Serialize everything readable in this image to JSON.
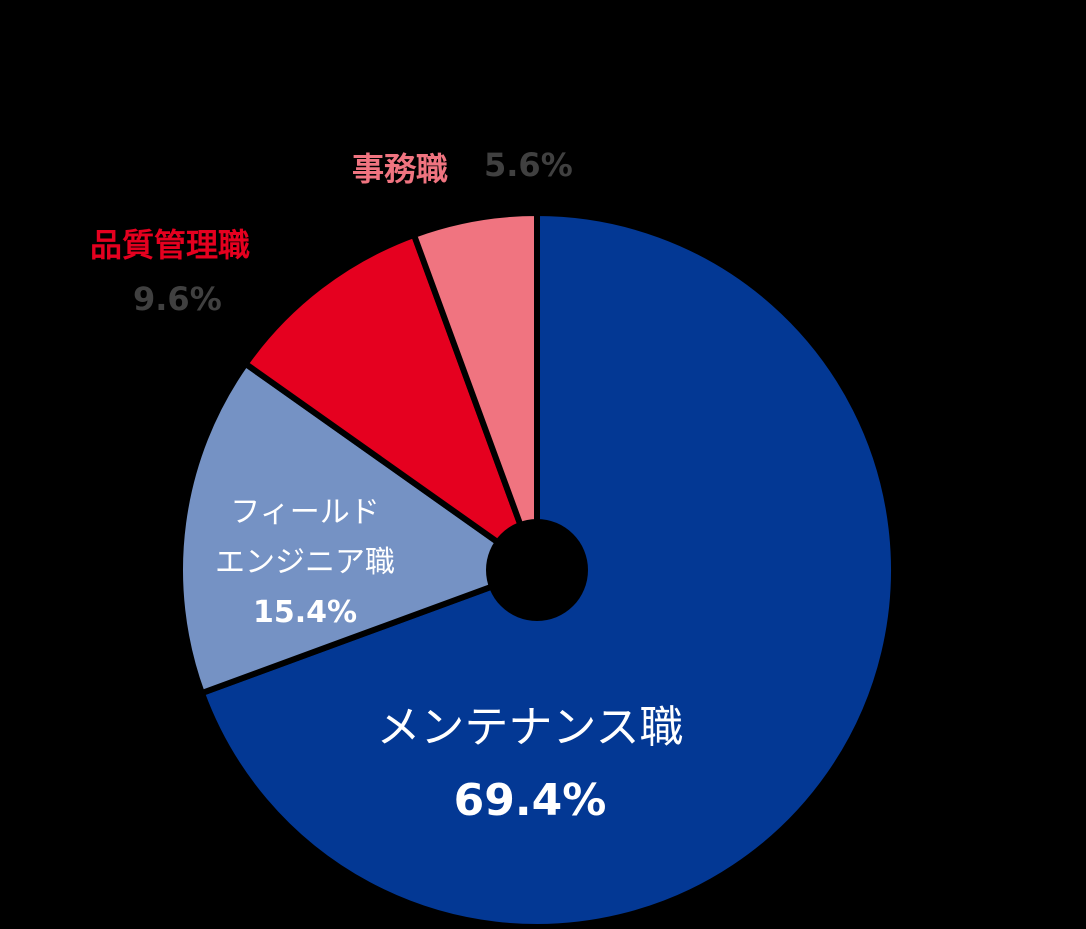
{
  "chart_data": {
    "type": "pie",
    "variant": "donut",
    "start_angle": "12 o'clock",
    "direction": "clockwise",
    "categories": [
      "メンテナンス職",
      "フィールドエンジニア職",
      "品質管理職",
      "事務職"
    ],
    "values": [
      69.4,
      15.4,
      9.6,
      5.6
    ],
    "unit": "%",
    "colors": [
      "#033894",
      "#7592c4",
      "#e5001f",
      "#f07480"
    ],
    "title": "",
    "legend": "none (direct labels)"
  },
  "labels": {
    "office": {
      "name": "事務職",
      "pct": "5.6%"
    },
    "qa": {
      "name": "品質管理職",
      "pct": "9.6%"
    },
    "field": {
      "name_line1": "フィールド",
      "name_line2": "エンジニア職",
      "pct": "15.4%"
    },
    "maint": {
      "name": "メンテナンス職",
      "pct": "69.4%"
    }
  }
}
